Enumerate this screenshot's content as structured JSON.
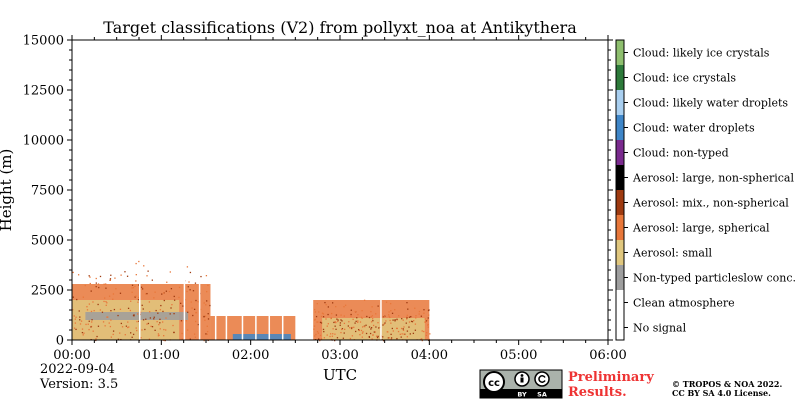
{
  "chart_data": {
    "type": "heatmap",
    "title": "Target classifications (V2) from pollyxt_noa at Antikythera",
    "xlabel": "UTC",
    "ylabel": "Height (m)",
    "xlim": [
      0,
      6
    ],
    "ylim": [
      0,
      15000
    ],
    "x_ticks": [
      "00:00",
      "01:00",
      "02:00",
      "03:00",
      "04:00",
      "05:00",
      "06:00"
    ],
    "y_ticks": [
      "0",
      "2500",
      "5000",
      "7500",
      "10000",
      "12500",
      "15000"
    ],
    "y_tick_values": [
      0,
      2500,
      5000,
      7500,
      10000,
      12500,
      15000
    ],
    "grid": false,
    "classes": [
      {
        "label": "No signal",
        "color": "#ffffff"
      },
      {
        "label": "Clean atmosphere",
        "color": "#ffffff"
      },
      {
        "label": "Non-typed particleslow conc.",
        "color": "#9e9e9e"
      },
      {
        "label": "Aerosol: small",
        "color": "#e0c77e"
      },
      {
        "label": "Aerosol: large, spherical",
        "color": "#e8773a"
      },
      {
        "label": "Aerosol: mix., non-spherical",
        "color": "#9e3a10"
      },
      {
        "label": "Aerosol: large, non-spherical",
        "color": "#000000"
      },
      {
        "label": "Cloud: non-typed",
        "color": "#7a2a8e"
      },
      {
        "label": "Cloud: water droplets",
        "color": "#3f86c8"
      },
      {
        "label": "Cloud: likely water droplets",
        "color": "#a9cff0"
      },
      {
        "label": "Cloud: ice crystals",
        "color": "#2d7a3a"
      },
      {
        "label": "Cloud: likely ice crystals",
        "color": "#8ebf6e"
      }
    ],
    "regions": [
      {
        "class": "Aerosol: large, spherical",
        "x_start": 0.0,
        "x_end": 1.55,
        "y_bottom": 0,
        "y_top": 2800
      },
      {
        "class": "Aerosol: small",
        "x_start": 0.0,
        "x_end": 1.2,
        "y_bottom": 0,
        "y_top": 2000
      },
      {
        "class": "Non-typed particleslow conc.",
        "x_start": 0.15,
        "x_end": 1.3,
        "y_bottom": 1000,
        "y_top": 1400
      },
      {
        "class": "Aerosol: large, spherical",
        "x_start": 1.55,
        "x_end": 2.5,
        "y_bottom": 0,
        "y_top": 1200
      },
      {
        "class": "Cloud: water droplets",
        "x_start": 1.8,
        "x_end": 2.45,
        "y_bottom": 0,
        "y_top": 300
      },
      {
        "class": "Aerosol: large, spherical",
        "x_start": 2.7,
        "x_end": 4.0,
        "y_bottom": 0,
        "y_top": 2000
      },
      {
        "class": "Aerosol: small",
        "x_start": 2.8,
        "x_end": 3.95,
        "y_bottom": 0,
        "y_top": 1100
      }
    ]
  },
  "footer": {
    "date": "2022-09-04",
    "version": "Version: 3.5",
    "preliminary_line1": "Preliminary",
    "preliminary_line2": "Results.",
    "copyright_line1": "© TROPOS & NOA 2022.",
    "copyright_line2": "CC BY SA 4.0 License.",
    "license_badge": {
      "cc": "cc",
      "by": "BY",
      "sa": "SA",
      "icon": "cc-by-sa-icon"
    }
  }
}
